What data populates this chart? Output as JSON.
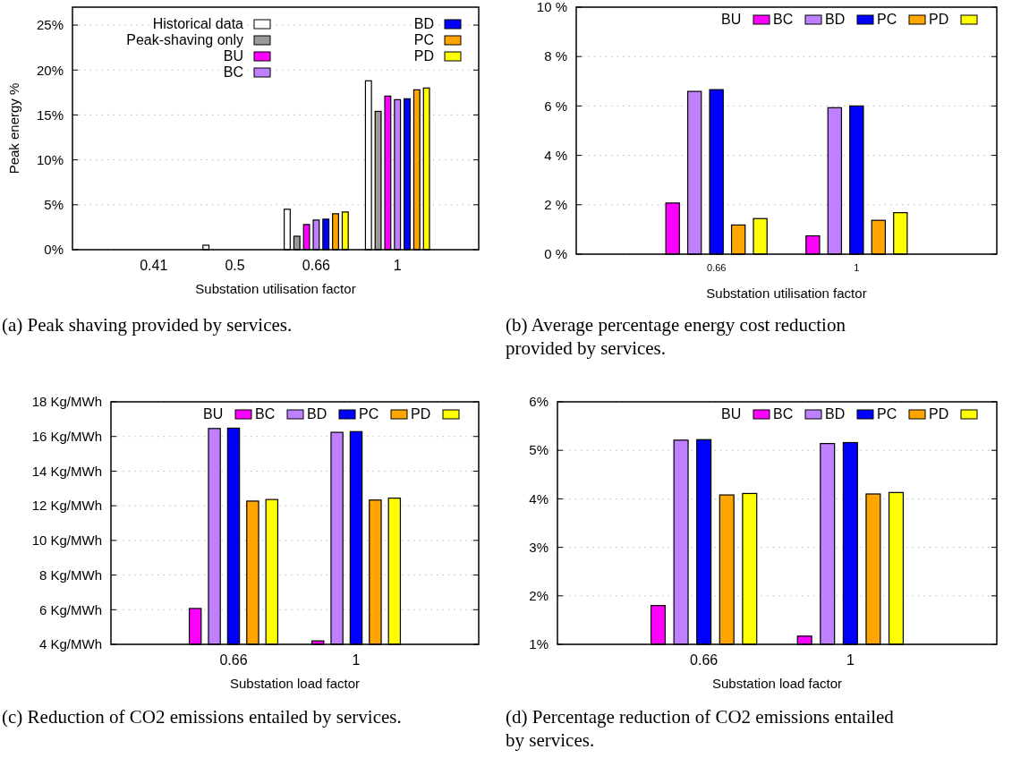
{
  "chart_data": [
    {
      "type": "bar",
      "xlabel": "Substation utilisation factor",
      "ylabel": "Peak energy %",
      "categories": [
        "0.41",
        "0.5",
        "0.66",
        "1"
      ],
      "series": [
        {
          "name": "Historical data",
          "color": "#ffffff",
          "values": [
            null,
            0.5,
            4.5,
            18.8
          ]
        },
        {
          "name": "Peak-shaving only",
          "color": "#999999",
          "values": [
            0,
            null,
            1.5,
            15.4
          ]
        },
        {
          "name": "BU",
          "color": "#ff00ff",
          "values": [
            0,
            0,
            2.8,
            17.1
          ]
        },
        {
          "name": "BC",
          "color": "#bf80ff",
          "values": [
            0,
            0,
            3.3,
            16.7
          ]
        },
        {
          "name": "BD",
          "color": "#0000ff",
          "values": [
            0,
            0,
            3.4,
            16.8
          ]
        },
        {
          "name": "PC",
          "color": "#ffa500",
          "values": [
            0,
            0,
            4.0,
            17.8
          ]
        },
        {
          "name": "PD",
          "color": "#ffff00",
          "values": [
            0,
            0,
            4.2,
            18.0
          ]
        }
      ],
      "ylim": [
        0,
        27
      ],
      "yticks": [
        {
          "value": 0,
          "label": "0%"
        },
        {
          "value": 5,
          "label": "5%"
        },
        {
          "value": 10,
          "label": "10%"
        },
        {
          "value": 15,
          "label": "15%"
        },
        {
          "value": 20,
          "label": "20%"
        },
        {
          "value": 25,
          "label": "25%"
        }
      ],
      "grid": "y",
      "legend": "top",
      "annotations": [
        "(a) Peak shaving provided by services."
      ]
    },
    {
      "type": "bar",
      "xlabel": "Substation utilisation factor",
      "categories": [
        "0.66",
        "1"
      ],
      "series": [
        {
          "name": "BU",
          "color": "#ff00ff",
          "values": [
            2.07,
            0.74
          ]
        },
        {
          "name": "BC",
          "color": "#bf80ff",
          "values": [
            6.59,
            5.93
          ]
        },
        {
          "name": "BD",
          "color": "#0000ff",
          "values": [
            6.66,
            6.0
          ]
        },
        {
          "name": "PC",
          "color": "#ffa500",
          "values": [
            1.18,
            1.37
          ]
        },
        {
          "name": "PD",
          "color": "#ffff00",
          "values": [
            1.44,
            1.68
          ]
        }
      ],
      "ylim": [
        0,
        10
      ],
      "yticks": [
        {
          "value": 0,
          "label": "0 %"
        },
        {
          "value": 2,
          "label": "2 %"
        },
        {
          "value": 4,
          "label": "4 %"
        },
        {
          "value": 6,
          "label": "6 %"
        },
        {
          "value": 8,
          "label": "8 %"
        },
        {
          "value": 10,
          "label": "10 %"
        }
      ],
      "grid": "y",
      "legend": "top right",
      "annotations": [
        "(b) Average percentage energy cost reduction provided by services."
      ]
    },
    {
      "type": "bar",
      "xlabel": "Substation load factor",
      "categories": [
        "0.66",
        "1"
      ],
      "series": [
        {
          "name": "BU",
          "color": "#ff00ff",
          "values": [
            6.07,
            4.2
          ]
        },
        {
          "name": "BC",
          "color": "#bf80ff",
          "values": [
            16.46,
            16.24
          ]
        },
        {
          "name": "BD",
          "color": "#0000ff",
          "values": [
            16.48,
            16.28
          ]
        },
        {
          "name": "PC",
          "color": "#ffa500",
          "values": [
            12.27,
            12.33
          ]
        },
        {
          "name": "PD",
          "color": "#ffff00",
          "values": [
            12.36,
            12.44
          ]
        }
      ],
      "ylim": [
        4,
        18
      ],
      "yticks": [
        {
          "value": 4,
          "label": "4 Kg/MWh"
        },
        {
          "value": 6,
          "label": "6 Kg/MWh"
        },
        {
          "value": 8,
          "label": "8 Kg/MWh"
        },
        {
          "value": 10,
          "label": "10 Kg/MWh"
        },
        {
          "value": 12,
          "label": "12 Kg/MWh"
        },
        {
          "value": 14,
          "label": "14 Kg/MWh"
        },
        {
          "value": 16,
          "label": "16 Kg/MWh"
        },
        {
          "value": 18,
          "label": "18 Kg/MWh"
        }
      ],
      "grid": "y",
      "legend": "top right",
      "annotations": [
        "(c) Reduction of CO2 emissions entailed by services."
      ]
    },
    {
      "type": "bar",
      "xlabel": "Substation load factor",
      "categories": [
        "0.66",
        "1"
      ],
      "series": [
        {
          "name": "BU",
          "color": "#ff00ff",
          "values": [
            1.8,
            1.17
          ]
        },
        {
          "name": "BC",
          "color": "#bf80ff",
          "values": [
            5.21,
            5.14
          ]
        },
        {
          "name": "BD",
          "color": "#0000ff",
          "values": [
            5.22,
            5.16
          ]
        },
        {
          "name": "PC",
          "color": "#ffa500",
          "values": [
            4.08,
            4.1
          ]
        },
        {
          "name": "PD",
          "color": "#ffff00",
          "values": [
            4.11,
            4.13
          ]
        }
      ],
      "ylim": [
        1,
        6
      ],
      "yticks": [
        {
          "value": 1,
          "label": "1%"
        },
        {
          "value": 2,
          "label": "2%"
        },
        {
          "value": 3,
          "label": "3%"
        },
        {
          "value": 4,
          "label": "4%"
        },
        {
          "value": 5,
          "label": "5%"
        },
        {
          "value": 6,
          "label": "6%"
        }
      ],
      "grid": "y",
      "legend": "top right",
      "annotations": [
        "(d) Percentage reduction of CO2 emissions entailed by services."
      ]
    }
  ]
}
